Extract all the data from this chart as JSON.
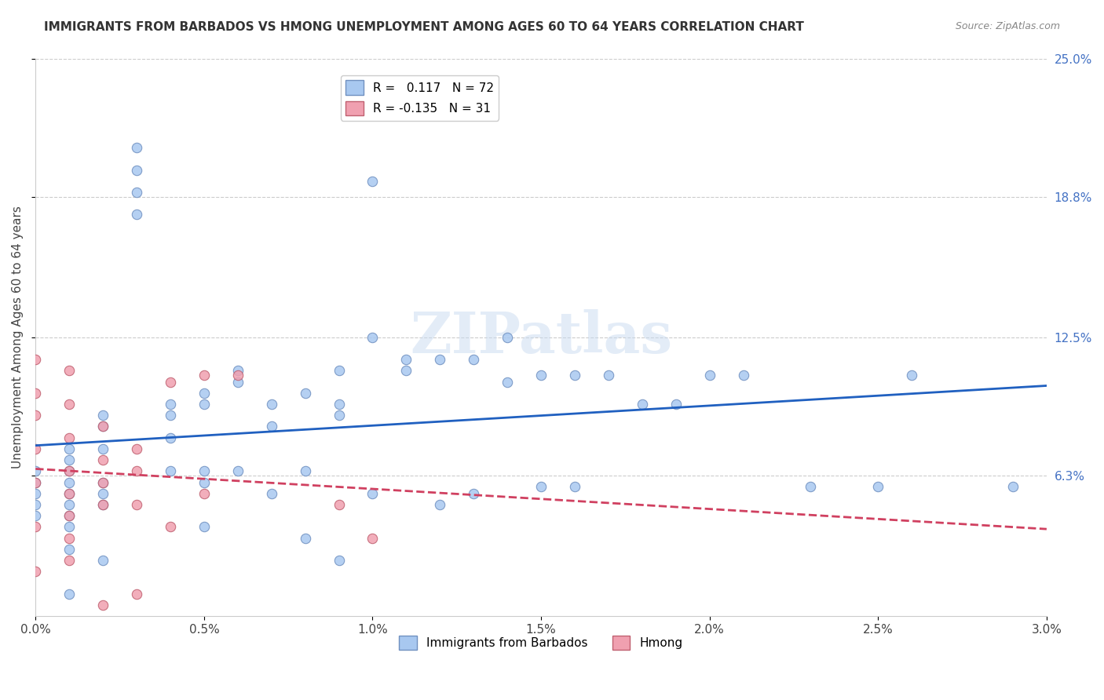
{
  "title": "IMMIGRANTS FROM BARBADOS VS HMONG UNEMPLOYMENT AMONG AGES 60 TO 64 YEARS CORRELATION CHART",
  "source": "Source: ZipAtlas.com",
  "xlabel": "",
  "ylabel": "Unemployment Among Ages 60 to 64 years",
  "xlim": [
    0.0,
    0.03
  ],
  "ylim": [
    0.0,
    0.25
  ],
  "xticks": [
    0.0,
    0.005,
    0.01,
    0.015,
    0.02,
    0.025,
    0.03
  ],
  "xtick_labels": [
    "0.0%",
    "0.5%",
    "1.0%",
    "1.5%",
    "2.0%",
    "2.5%",
    "3.0%"
  ],
  "yticks_right": [
    0.063,
    0.125,
    0.188,
    0.25
  ],
  "ytick_labels_right": [
    "6.3%",
    "12.5%",
    "18.8%",
    "25.0%"
  ],
  "barbados_color": "#a8c8f0",
  "hmong_color": "#f0a0b0",
  "barbados_edge_color": "#7090c0",
  "hmong_edge_color": "#c06070",
  "trend_barbados_color": "#2060c0",
  "trend_hmong_color": "#d04060",
  "R_barbados": 0.117,
  "N_barbados": 72,
  "R_hmong": -0.135,
  "N_hmong": 31,
  "legend_label_barbados": "Immigrants from Barbados",
  "legend_label_hmong": "Hmong",
  "watermark": "ZIPatlas",
  "watermark_color": "#c8daf0",
  "barbados_x": [
    0.0,
    0.0,
    0.0,
    0.0,
    0.0,
    0.001,
    0.001,
    0.001,
    0.001,
    0.001,
    0.001,
    0.001,
    0.001,
    0.001,
    0.001,
    0.002,
    0.002,
    0.002,
    0.002,
    0.002,
    0.002,
    0.002,
    0.003,
    0.003,
    0.003,
    0.003,
    0.004,
    0.004,
    0.004,
    0.004,
    0.005,
    0.005,
    0.005,
    0.005,
    0.005,
    0.006,
    0.006,
    0.006,
    0.007,
    0.007,
    0.007,
    0.008,
    0.008,
    0.008,
    0.009,
    0.009,
    0.009,
    0.009,
    0.01,
    0.01,
    0.01,
    0.011,
    0.011,
    0.012,
    0.012,
    0.013,
    0.013,
    0.014,
    0.014,
    0.015,
    0.015,
    0.016,
    0.016,
    0.017,
    0.018,
    0.019,
    0.02,
    0.021,
    0.023,
    0.025,
    0.026,
    0.029
  ],
  "barbados_y": [
    0.065,
    0.06,
    0.055,
    0.05,
    0.045,
    0.075,
    0.07,
    0.065,
    0.06,
    0.055,
    0.05,
    0.045,
    0.04,
    0.03,
    0.01,
    0.09,
    0.085,
    0.075,
    0.06,
    0.055,
    0.05,
    0.025,
    0.21,
    0.2,
    0.19,
    0.18,
    0.095,
    0.09,
    0.08,
    0.065,
    0.1,
    0.095,
    0.065,
    0.06,
    0.04,
    0.11,
    0.105,
    0.065,
    0.095,
    0.085,
    0.055,
    0.1,
    0.065,
    0.035,
    0.11,
    0.095,
    0.09,
    0.025,
    0.195,
    0.125,
    0.055,
    0.115,
    0.11,
    0.115,
    0.05,
    0.115,
    0.055,
    0.125,
    0.105,
    0.108,
    0.058,
    0.108,
    0.058,
    0.108,
    0.095,
    0.095,
    0.108,
    0.108,
    0.058,
    0.058,
    0.108,
    0.058
  ],
  "hmong_x": [
    0.0,
    0.0,
    0.0,
    0.0,
    0.0,
    0.0,
    0.0,
    0.001,
    0.001,
    0.001,
    0.001,
    0.001,
    0.001,
    0.001,
    0.001,
    0.002,
    0.002,
    0.002,
    0.002,
    0.002,
    0.003,
    0.003,
    0.003,
    0.003,
    0.004,
    0.004,
    0.005,
    0.005,
    0.006,
    0.009,
    0.01
  ],
  "hmong_y": [
    0.115,
    0.1,
    0.09,
    0.075,
    0.06,
    0.04,
    0.02,
    0.11,
    0.095,
    0.08,
    0.065,
    0.055,
    0.045,
    0.035,
    0.025,
    0.085,
    0.07,
    0.06,
    0.05,
    0.005,
    0.075,
    0.065,
    0.05,
    0.01,
    0.105,
    0.04,
    0.108,
    0.055,
    0.108,
    0.05,
    0.035
  ]
}
